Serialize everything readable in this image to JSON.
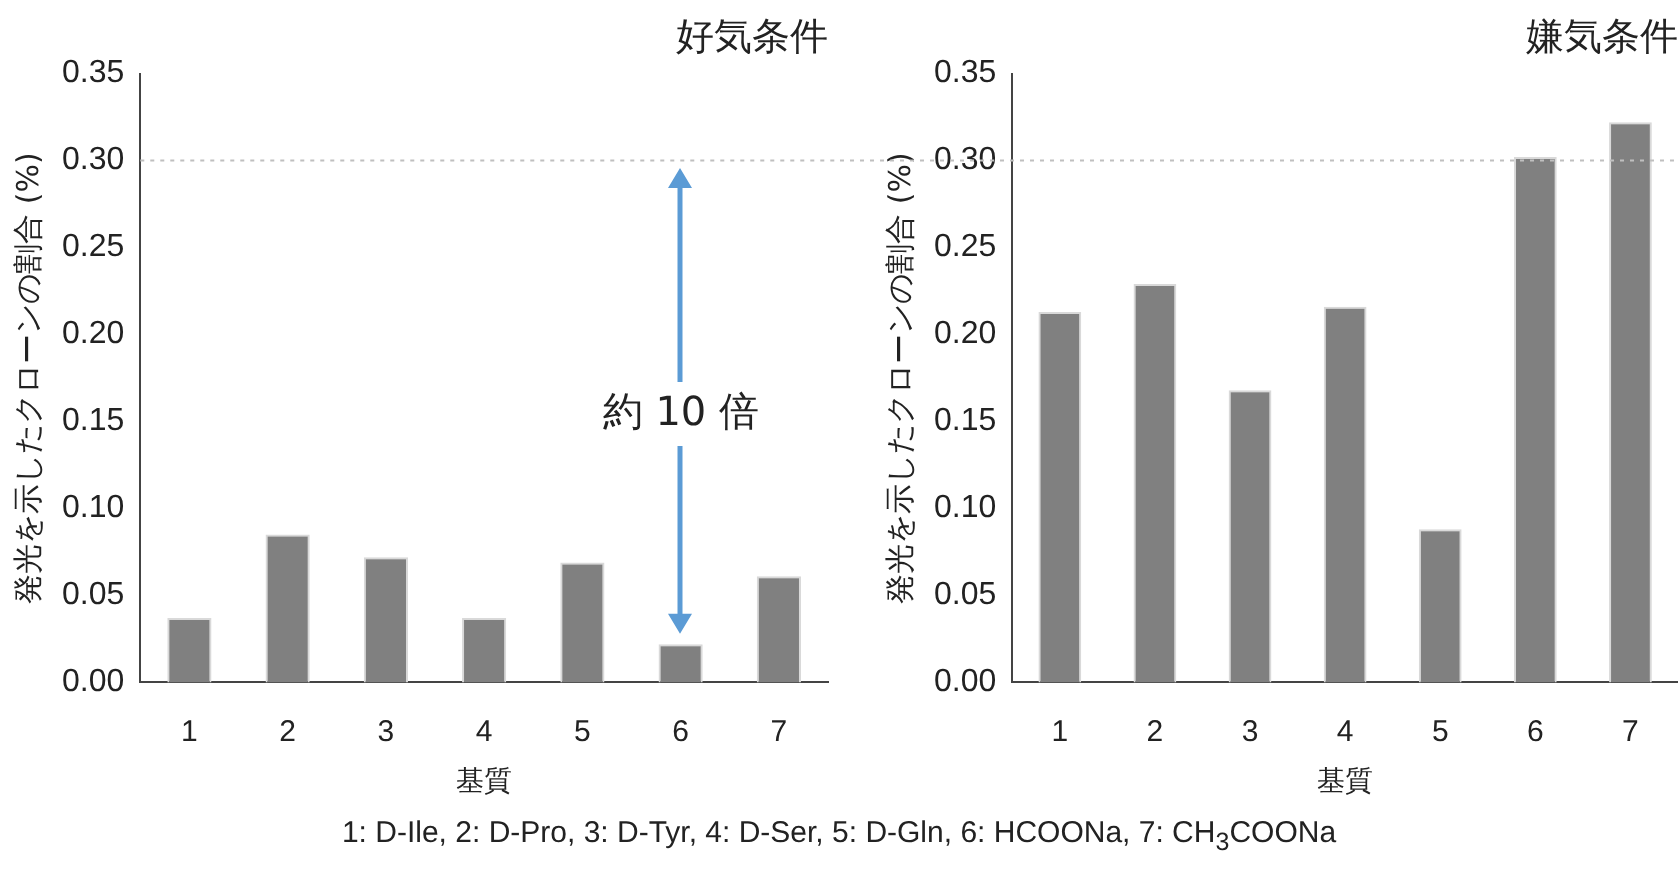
{
  "chart_data": [
    {
      "type": "bar",
      "title": "好気条件",
      "xlabel": "基質",
      "ylabel": "発光を示したクローンの割合 (%)",
      "categories": [
        "1",
        "2",
        "3",
        "4",
        "5",
        "6",
        "7"
      ],
      "values": [
        0.037,
        0.085,
        0.072,
        0.037,
        0.069,
        0.022,
        0.061
      ],
      "color": "#808080",
      "ylim": [
        0,
        0.35
      ],
      "yticks": [
        {
          "value": 0,
          "label": "0.00"
        },
        0.05,
        {
          "value": 0.1,
          "label": "0.10"
        },
        0.15,
        {
          "value": 0.2,
          "label": "0.20"
        },
        0.25,
        {
          "value": 0.3,
          "label": "0.30"
        },
        0.35
      ],
      "ref_lines": [
        {
          "axis": "y",
          "value": 0.3,
          "color": "#bfbfbf",
          "line_style": "dotted"
        }
      ],
      "annotations": [
        "約 10 倍",
        "1: D-Ile, 2: D-Pro, 3: D-Tyr, 4: D-Ser, 5: D-Gln, 6: HCOONa, 7: CH$_{3}$COONa"
      ]
    },
    {
      "type": "bar",
      "title": "嫌気条件",
      "xlabel": "基質",
      "ylabel": "発光を示したクローンの割合 (%)",
      "categories": [
        "1",
        "2",
        "3",
        "4",
        "5",
        "6",
        "7"
      ],
      "values": [
        0.213,
        0.229,
        0.168,
        0.216,
        0.088,
        0.302,
        0.322
      ],
      "color": "#808080",
      "ylim": [
        0,
        0.35
      ],
      "yticks": [
        {
          "value": 0,
          "label": "0.00"
        },
        0.05,
        {
          "value": 0.1,
          "label": "0.10"
        },
        0.15,
        {
          "value": 0.2,
          "label": "0.20"
        },
        0.25,
        {
          "value": 0.3,
          "label": "0.30"
        },
        0.35
      ],
      "ref_lines": [
        {
          "axis": "y",
          "value": 0.3,
          "color": "#bfbfbf",
          "line_style": "dotted"
        }
      ]
    }
  ]
}
